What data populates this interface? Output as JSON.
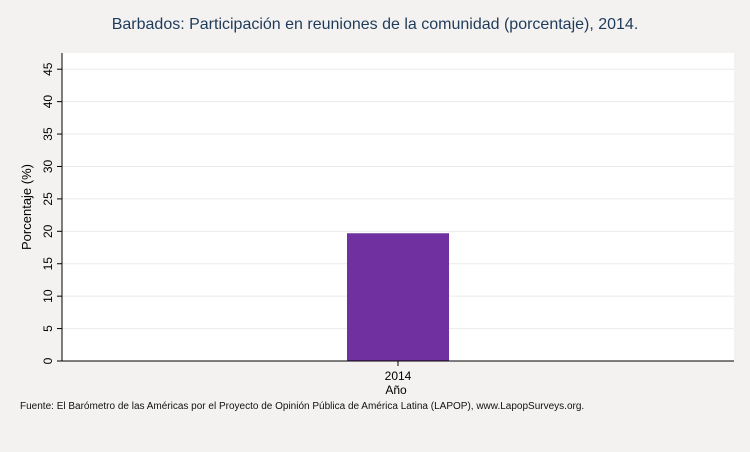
{
  "chart_data": {
    "type": "bar",
    "title": "Barbados: Participación en reuniones de la comunidad (porcentaje), 2014.",
    "xlabel": "Año",
    "ylabel": "Porcentaje (%)",
    "categories": [
      "2014"
    ],
    "values": [
      19.7
    ],
    "ylim": [
      0,
      47.5
    ],
    "yticks": [
      0,
      5,
      10,
      15,
      20,
      25,
      30,
      35,
      40,
      45
    ],
    "grid": true,
    "bar_color": "#7030a0"
  },
  "source": "Fuente: El Barómetro de las Américas por el Proyecto de Opinión Pública de América Latina (LAPOP), www.LapopSurveys.org."
}
